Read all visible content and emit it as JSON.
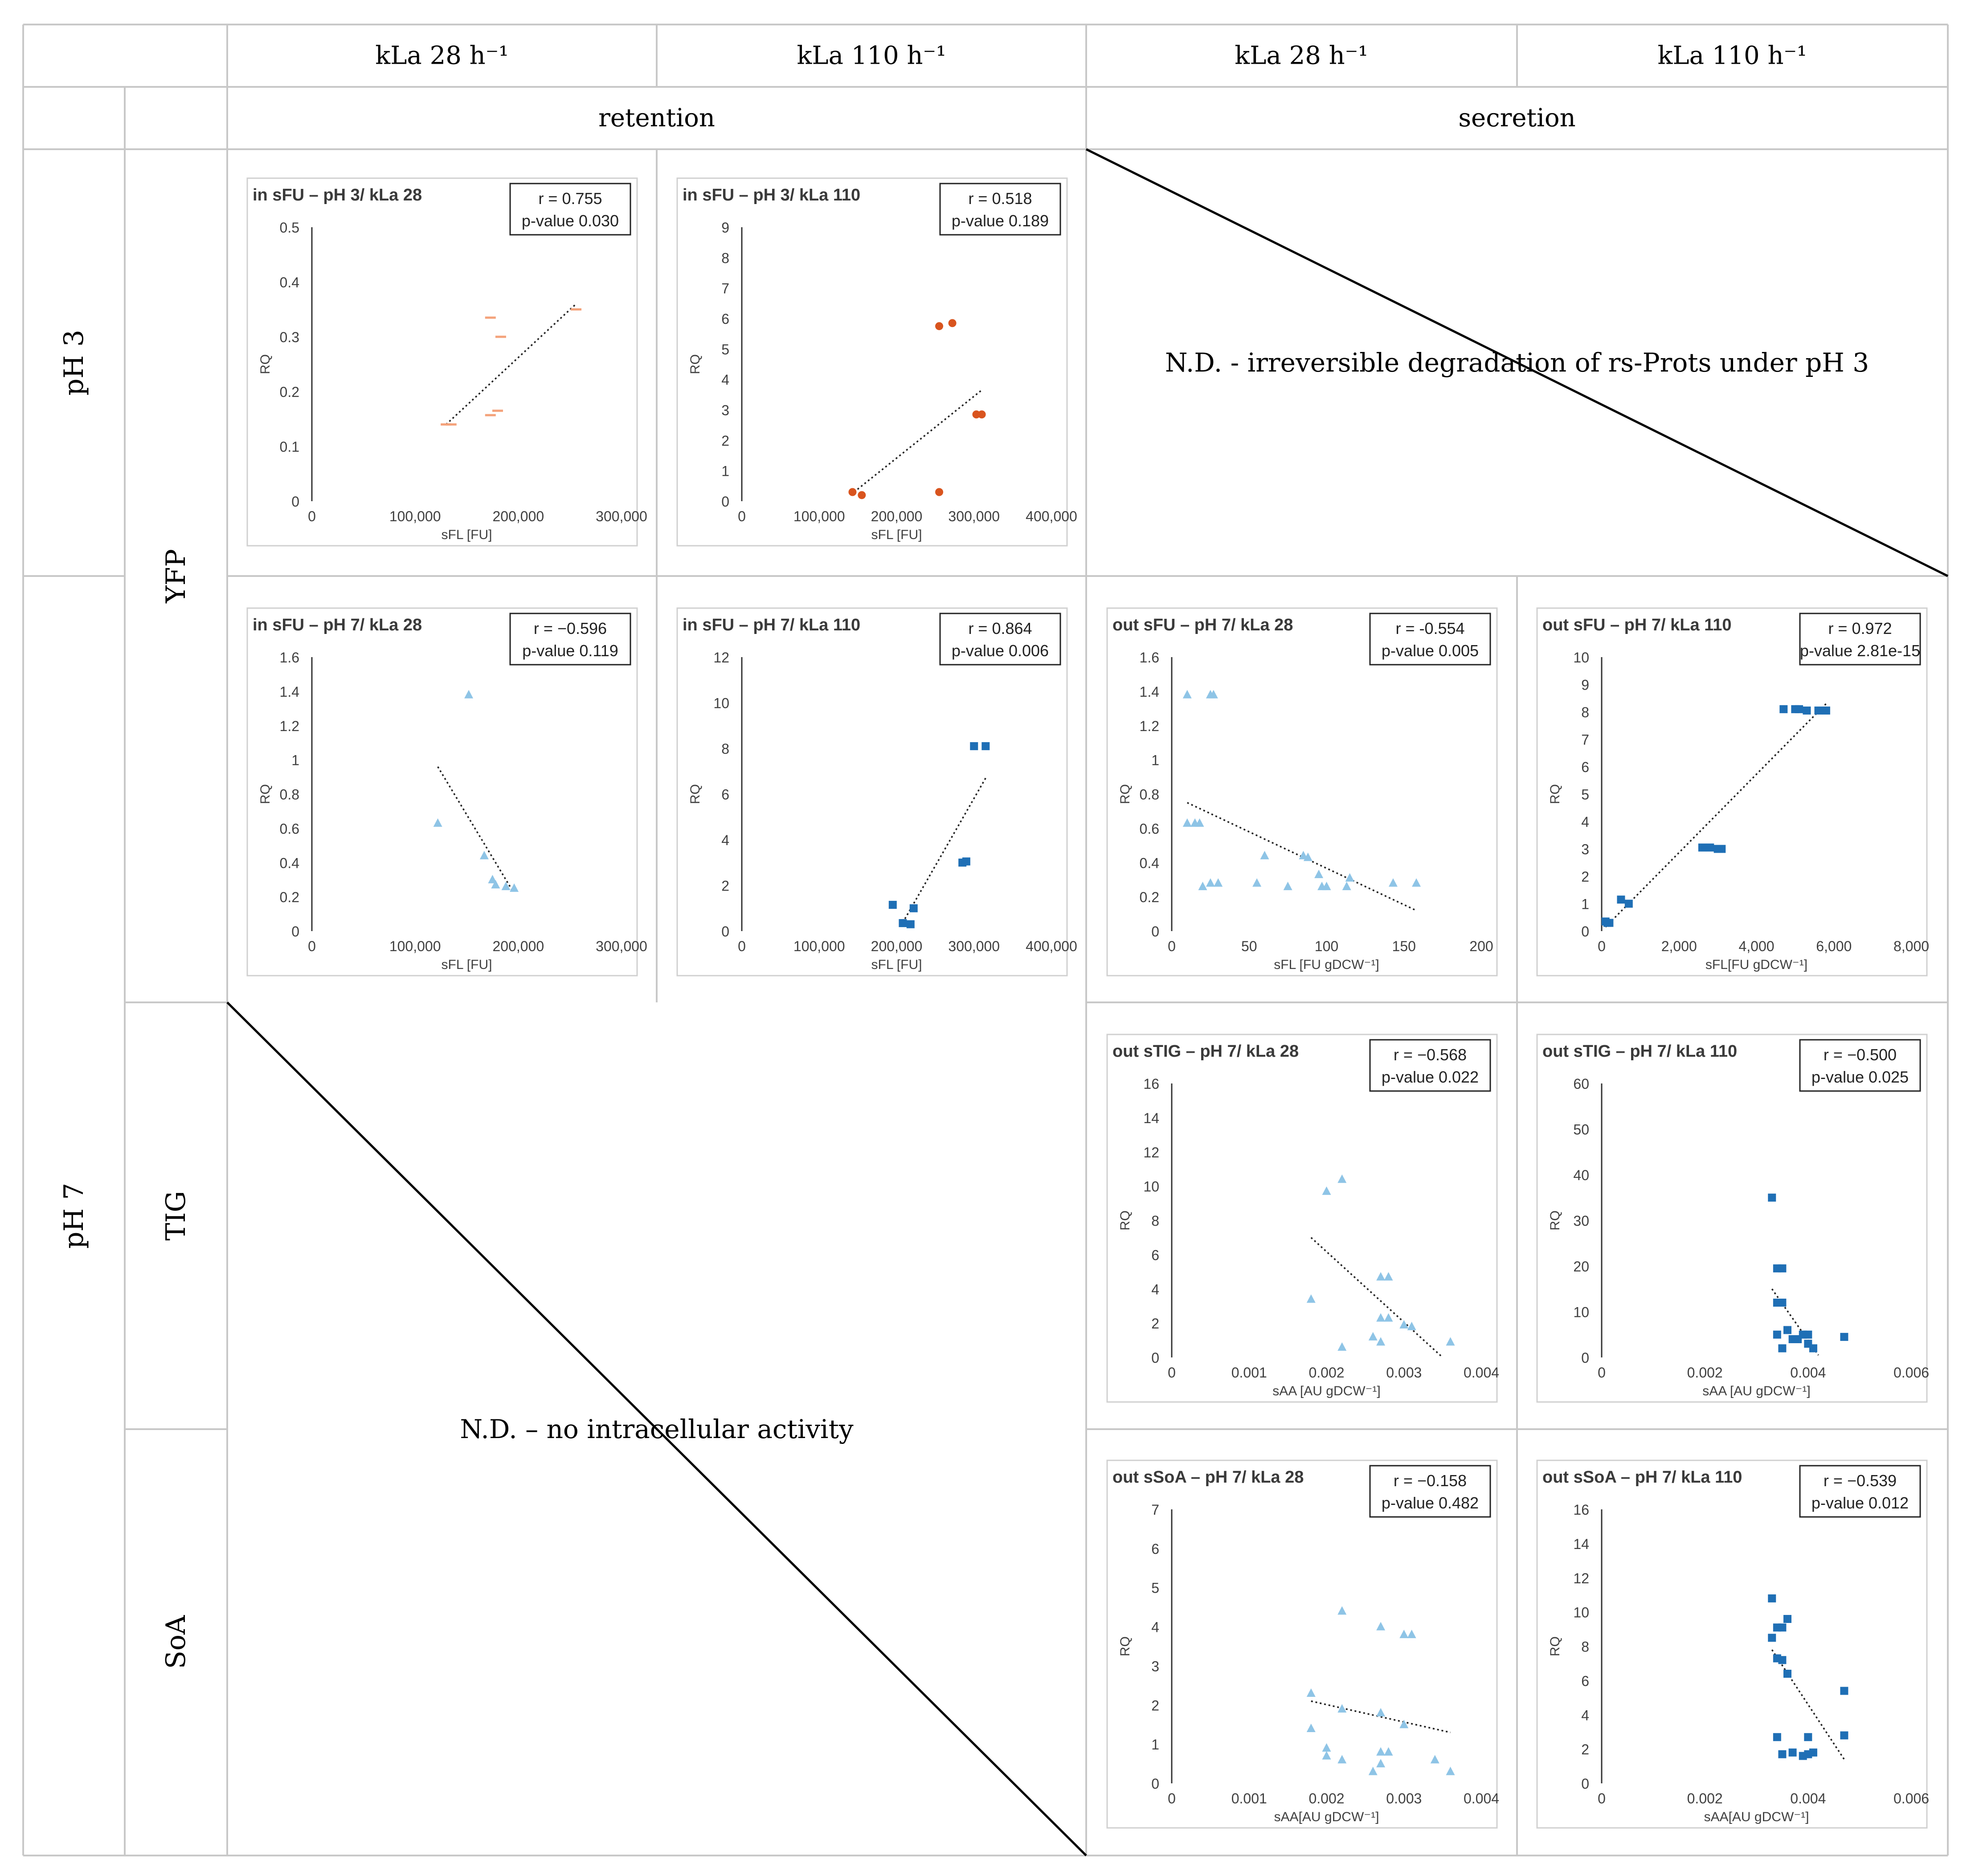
{
  "headers": {
    "col1": "kLa 28 h⁻¹",
    "col2": "kLa 110 h⁻¹",
    "col3": "kLa 28 h⁻¹",
    "col4": "kLa 110 h⁻¹",
    "retention": "retention",
    "secretion": "secretion"
  },
  "rows": {
    "ph3": "pH 3",
    "ph7": "pH 7",
    "yfp": "YFP",
    "tig": "TIG",
    "soa": "SoA"
  },
  "notes": {
    "ph3_secretion": "N.D. - irreversible degradation of rs-Prots under pH 3",
    "no_intracellular": "N.D. – no intracellular activity"
  },
  "colors": {
    "orange": "#f4a27a",
    "dark_orange": "#d9541e",
    "light_blue": "#8ec4e6",
    "dark_blue": "#1f6fb5",
    "grid": "#c8c8c8"
  },
  "chart_data": [
    {
      "id": "in-sfu-ph3-kla28",
      "type": "scatter",
      "title": "in sFU – pH 3/ kLa 28",
      "r_text": "r = 0.755",
      "p_text": "p-value 0.030",
      "xlabel": "sFL [FU]",
      "ylabel": "RQ",
      "xlim": [
        0,
        300000
      ],
      "ylim": [
        0,
        0.5
      ],
      "xticks": [
        0,
        100000,
        200000,
        300000
      ],
      "xtick_labels": [
        "0",
        "100,000",
        "200,000",
        "300,000"
      ],
      "yticks": [
        0,
        0.1,
        0.2,
        0.3,
        0.4,
        0.5
      ],
      "ytick_labels": [
        "0",
        "0.1",
        "0.2",
        "0.3",
        "0.4",
        "0.5"
      ],
      "marker": "dash",
      "color": "#f4a27a",
      "points": [
        [
          130000,
          0.14
        ],
        [
          135000,
          0.14
        ],
        [
          173000,
          0.335
        ],
        [
          183000,
          0.3
        ],
        [
          173000,
          0.157
        ],
        [
          180000,
          0.165
        ],
        [
          256000,
          0.35
        ]
      ],
      "trend": [
        [
          130000,
          0.14
        ],
        [
          256000,
          0.36
        ]
      ]
    },
    {
      "id": "in-sfu-ph3-kla110",
      "type": "scatter",
      "title": "in sFU – pH 3/ kLa 110",
      "r_text": "r = 0.518",
      "p_text": "p-value 0.189",
      "xlabel": "sFL [FU]",
      "ylabel": "RQ",
      "xlim": [
        0,
        400000
      ],
      "ylim": [
        0,
        9
      ],
      "xticks": [
        0,
        100000,
        200000,
        300000,
        400000
      ],
      "xtick_labels": [
        "0",
        "100,000",
        "200,000",
        "300,000",
        "400,000"
      ],
      "yticks": [
        0,
        1,
        2,
        3,
        4,
        5,
        6,
        7,
        8,
        9
      ],
      "ytick_labels": [
        "0",
        "1",
        "2",
        "3",
        "4",
        "5",
        "6",
        "7",
        "8",
        "9"
      ],
      "marker": "circle",
      "color": "#d9541e",
      "points": [
        [
          143000,
          0.3
        ],
        [
          155000,
          0.2
        ],
        [
          255000,
          5.75
        ],
        [
          272000,
          5.85
        ],
        [
          255000,
          0.3
        ],
        [
          303000,
          2.85
        ],
        [
          310000,
          2.85
        ]
      ],
      "trend": [
        [
          145000,
          0.3
        ],
        [
          310000,
          3.65
        ]
      ]
    },
    {
      "id": "in-sfu-ph7-kla28",
      "type": "scatter",
      "title": "in sFU – pH 7/ kLa 28",
      "r_text": "r = −0.596",
      "p_text": "p-value 0.119",
      "xlabel": "sFL [FU]",
      "ylabel": "RQ",
      "xlim": [
        0,
        300000
      ],
      "ylim": [
        0,
        1.6
      ],
      "xticks": [
        0,
        100000,
        200000,
        300000
      ],
      "xtick_labels": [
        "0",
        "100,000",
        "200,000",
        "300,000"
      ],
      "yticks": [
        0,
        0.2,
        0.4,
        0.6,
        0.8,
        1,
        1.2,
        1.4,
        1.6
      ],
      "ytick_labels": [
        "0",
        "0.2",
        "0.4",
        "0.6",
        "0.8",
        "1",
        "1.2",
        "1.4",
        "1.6"
      ],
      "marker": "triangle",
      "color": "#8ec4e6",
      "points": [
        [
          152000,
          1.38
        ],
        [
          122000,
          0.63
        ],
        [
          167000,
          0.44
        ],
        [
          175000,
          0.3
        ],
        [
          178000,
          0.27
        ],
        [
          188000,
          0.26
        ],
        [
          196000,
          0.25
        ]
      ],
      "trend": [
        [
          122000,
          0.96
        ],
        [
          195000,
          0.23
        ]
      ]
    },
    {
      "id": "in-sfu-ph7-kla110",
      "type": "scatter",
      "title": "in sFU – pH 7/ kLa 110",
      "r_text": "r = 0.864",
      "p_text": "p-value 0.006",
      "xlabel": "sFL [FU]",
      "ylabel": "RQ",
      "xlim": [
        0,
        400000
      ],
      "ylim": [
        0,
        12
      ],
      "xticks": [
        0,
        100000,
        200000,
        300000,
        400000
      ],
      "xtick_labels": [
        "0",
        "100,000",
        "200,000",
        "300,000",
        "400,000"
      ],
      "yticks": [
        0,
        2,
        4,
        6,
        8,
        10,
        12
      ],
      "ytick_labels": [
        "0",
        "2",
        "4",
        "6",
        "8",
        "10",
        "12"
      ],
      "marker": "square",
      "color": "#1f6fb5",
      "points": [
        [
          195000,
          1.15
        ],
        [
          208000,
          0.35
        ],
        [
          218000,
          0.3
        ],
        [
          222000,
          1.0
        ],
        [
          285000,
          3.0
        ],
        [
          290000,
          3.05
        ],
        [
          300000,
          8.1
        ],
        [
          315000,
          8.1
        ]
      ],
      "trend": [
        [
          205000,
          0.2
        ],
        [
          315000,
          6.7
        ]
      ]
    },
    {
      "id": "out-sfu-ph7-kla28",
      "type": "scatter",
      "title": "out sFU – pH 7/ kLa 28",
      "r_text": "r = -0.554",
      "p_text": "p-value 0.005",
      "xlabel": "sFL [FU gDCW⁻¹]",
      "ylabel": "RQ",
      "xlim": [
        0,
        200
      ],
      "ylim": [
        0,
        1.6
      ],
      "xticks": [
        0,
        50,
        100,
        150,
        200
      ],
      "xtick_labels": [
        "0",
        "50",
        "100",
        "150",
        "200"
      ],
      "yticks": [
        0,
        0.2,
        0.4,
        0.6,
        0.8,
        1,
        1.2,
        1.4,
        1.6
      ],
      "ytick_labels": [
        "0",
        "0.2",
        "0.4",
        "0.6",
        "0.8",
        "1",
        "1.2",
        "1.4",
        "1.6"
      ],
      "marker": "triangle",
      "color": "#8ec4e6",
      "points": [
        [
          10,
          1.38
        ],
        [
          25,
          1.38
        ],
        [
          27,
          1.38
        ],
        [
          10,
          0.63
        ],
        [
          15,
          0.63
        ],
        [
          18,
          0.63
        ],
        [
          20,
          0.26
        ],
        [
          25,
          0.28
        ],
        [
          30,
          0.28
        ],
        [
          55,
          0.28
        ],
        [
          60,
          0.44
        ],
        [
          75,
          0.26
        ],
        [
          85,
          0.44
        ],
        [
          88,
          0.43
        ],
        [
          95,
          0.33
        ],
        [
          97,
          0.26
        ],
        [
          100,
          0.26
        ],
        [
          113,
          0.26
        ],
        [
          115,
          0.31
        ],
        [
          143,
          0.28
        ],
        [
          158,
          0.28
        ]
      ],
      "trend": [
        [
          10,
          0.75
        ],
        [
          158,
          0.12
        ]
      ]
    },
    {
      "id": "out-sfu-ph7-kla110",
      "type": "scatter",
      "title": "out sFU – pH 7/  kLa 110",
      "r_text": "r = 0.972",
      "p_text": "p-value 2.81e-15",
      "xlabel": "sFL[FU gDCW⁻¹]",
      "ylabel": "RQ",
      "xlim": [
        0,
        8000
      ],
      "ylim": [
        0,
        10
      ],
      "xticks": [
        0,
        2000,
        4000,
        6000,
        8000
      ],
      "xtick_labels": [
        "0",
        "2,000",
        "4,000",
        "6,000",
        "8,000"
      ],
      "yticks": [
        0,
        1,
        2,
        3,
        4,
        5,
        6,
        7,
        8,
        9,
        10
      ],
      "ytick_labels": [
        "0",
        "1",
        "2",
        "3",
        "4",
        "5",
        "6",
        "7",
        "8",
        "9",
        "10"
      ],
      "marker": "square",
      "color": "#1f6fb5",
      "points": [
        [
          100,
          0.35
        ],
        [
          150,
          0.3
        ],
        [
          200,
          0.3
        ],
        [
          500,
          1.15
        ],
        [
          700,
          1.0
        ],
        [
          2600,
          3.05
        ],
        [
          2800,
          3.05
        ],
        [
          3000,
          3.0
        ],
        [
          3100,
          3.0
        ],
        [
          4700,
          8.1
        ],
        [
          5000,
          8.1
        ],
        [
          5100,
          8.1
        ],
        [
          5300,
          8.05
        ],
        [
          5600,
          8.05
        ],
        [
          5800,
          8.05
        ]
      ],
      "trend": [
        [
          100,
          0.15
        ],
        [
          5800,
          8.3
        ]
      ]
    },
    {
      "id": "out-stig-ph7-kla28",
      "type": "scatter",
      "title": "out sTIG – pH 7/ kLa 28",
      "r_text": "r = −0.568",
      "p_text": "p-value 0.022",
      "xlabel": "sAA [AU gDCW⁻¹]",
      "ylabel": "RQ",
      "xlim": [
        0,
        0.004
      ],
      "ylim": [
        0,
        16
      ],
      "xticks": [
        0,
        0.001,
        0.002,
        0.003,
        0.004
      ],
      "xtick_labels": [
        "0",
        "0.001",
        "0.002",
        "0.003",
        "0.004"
      ],
      "yticks": [
        0,
        2,
        4,
        6,
        8,
        10,
        12,
        14,
        16
      ],
      "ytick_labels": [
        "0",
        "2",
        "4",
        "6",
        "8",
        "10",
        "12",
        "14",
        "16"
      ],
      "marker": "triangle",
      "color": "#8ec4e6",
      "points": [
        [
          0.0018,
          3.4
        ],
        [
          0.002,
          9.7
        ],
        [
          0.0022,
          10.4
        ],
        [
          0.0022,
          0.6
        ],
        [
          0.0026,
          1.2
        ],
        [
          0.0027,
          0.9
        ],
        [
          0.0027,
          4.7
        ],
        [
          0.0028,
          4.7
        ],
        [
          0.0027,
          2.3
        ],
        [
          0.0028,
          2.3
        ],
        [
          0.003,
          1.9
        ],
        [
          0.0031,
          1.8
        ],
        [
          0.0036,
          0.9
        ]
      ],
      "trend": [
        [
          0.0018,
          7.0
        ],
        [
          0.0035,
          0.0
        ]
      ]
    },
    {
      "id": "out-stig-ph7-kla110",
      "type": "scatter",
      "title": "out sTIG – pH 7/ kLa 110",
      "r_text": "r = −0.500",
      "p_text": "p-value 0.025",
      "xlabel": "sAA [AU gDCW⁻¹]",
      "ylabel": "RQ",
      "xlim": [
        0,
        0.006
      ],
      "ylim": [
        0,
        60
      ],
      "xticks": [
        0,
        0.002,
        0.004,
        0.006
      ],
      "xtick_labels": [
        "0",
        "0.002",
        "0.004",
        "0.006"
      ],
      "yticks": [
        0,
        10,
        20,
        30,
        40,
        50,
        60
      ],
      "ytick_labels": [
        "0",
        "10",
        "20",
        "30",
        "40",
        "50",
        "60"
      ],
      "marker": "square",
      "color": "#1f6fb5",
      "points": [
        [
          0.0033,
          35
        ],
        [
          0.0034,
          19.5
        ],
        [
          0.0035,
          19.5
        ],
        [
          0.0034,
          12
        ],
        [
          0.0035,
          12
        ],
        [
          0.0034,
          5
        ],
        [
          0.0035,
          2
        ],
        [
          0.0036,
          6
        ],
        [
          0.0037,
          4
        ],
        [
          0.0038,
          4
        ],
        [
          0.0039,
          5
        ],
        [
          0.004,
          3
        ],
        [
          0.004,
          5
        ],
        [
          0.0041,
          2
        ],
        [
          0.0047,
          4.5
        ]
      ],
      "trend": [
        [
          0.0033,
          15
        ],
        [
          0.0042,
          0.5
        ]
      ]
    },
    {
      "id": "out-ssoa-ph7-kla28",
      "type": "scatter",
      "title": "out sSoA – pH 7/ kLa 28",
      "r_text": "r = −0.158",
      "p_text": "p-value 0.482",
      "xlabel": "sAA[AU gDCW⁻¹]",
      "ylabel": "RQ",
      "xlim": [
        0,
        0.004
      ],
      "ylim": [
        0,
        7
      ],
      "xticks": [
        0,
        0.001,
        0.002,
        0.003,
        0.004
      ],
      "xtick_labels": [
        "0",
        "0.001",
        "0.002",
        "0.003",
        "0.004"
      ],
      "yticks": [
        0,
        1,
        2,
        3,
        4,
        5,
        6,
        7
      ],
      "ytick_labels": [
        "0",
        "1",
        "2",
        "3",
        "4",
        "5",
        "6",
        "7"
      ],
      "marker": "triangle",
      "color": "#8ec4e6",
      "points": [
        [
          0.0018,
          2.3
        ],
        [
          0.0018,
          1.4
        ],
        [
          0.002,
          0.9
        ],
        [
          0.002,
          0.7
        ],
        [
          0.0022,
          4.4
        ],
        [
          0.0022,
          1.9
        ],
        [
          0.0022,
          0.6
        ],
        [
          0.0026,
          0.3
        ],
        [
          0.0027,
          4.0
        ],
        [
          0.0027,
          1.8
        ],
        [
          0.0027,
          0.8
        ],
        [
          0.0027,
          0.5
        ],
        [
          0.0028,
          0.8
        ],
        [
          0.003,
          3.8
        ],
        [
          0.003,
          1.5
        ],
        [
          0.0031,
          3.8
        ],
        [
          0.0034,
          0.6
        ],
        [
          0.0036,
          0.3
        ]
      ],
      "trend": [
        [
          0.0018,
          2.1
        ],
        [
          0.0036,
          1.3
        ]
      ]
    },
    {
      "id": "out-ssoa-ph7-kla110",
      "type": "scatter",
      "title": "out sSoA – pH 7/ kLa 110",
      "r_text": "r = −0.539",
      "p_text": "p-value 0.012",
      "xlabel": "sAA[AU gDCW⁻¹]",
      "ylabel": "RQ",
      "xlim": [
        0,
        0.006
      ],
      "ylim": [
        0,
        16
      ],
      "xticks": [
        0,
        0.002,
        0.004,
        0.006
      ],
      "xtick_labels": [
        "0",
        "0.002",
        "0.004",
        "0.006"
      ],
      "yticks": [
        0,
        2,
        4,
        6,
        8,
        10,
        12,
        14,
        16
      ],
      "ytick_labels": [
        "0",
        "2",
        "4",
        "6",
        "8",
        "10",
        "12",
        "14",
        "16"
      ],
      "marker": "square",
      "color": "#1f6fb5",
      "points": [
        [
          0.0033,
          10.8
        ],
        [
          0.0033,
          8.5
        ],
        [
          0.0034,
          9.1
        ],
        [
          0.0035,
          9.1
        ],
        [
          0.0034,
          7.3
        ],
        [
          0.0035,
          7.2
        ],
        [
          0.0036,
          9.6
        ],
        [
          0.0036,
          6.4
        ],
        [
          0.0034,
          2.7
        ],
        [
          0.0035,
          1.7
        ],
        [
          0.0037,
          1.8
        ],
        [
          0.0039,
          1.6
        ],
        [
          0.004,
          1.7
        ],
        [
          0.004,
          2.7
        ],
        [
          0.0041,
          1.8
        ],
        [
          0.0047,
          5.4
        ],
        [
          0.0047,
          2.8
        ]
      ],
      "trend": [
        [
          0.0033,
          7.8
        ],
        [
          0.0047,
          1.4
        ]
      ]
    }
  ]
}
